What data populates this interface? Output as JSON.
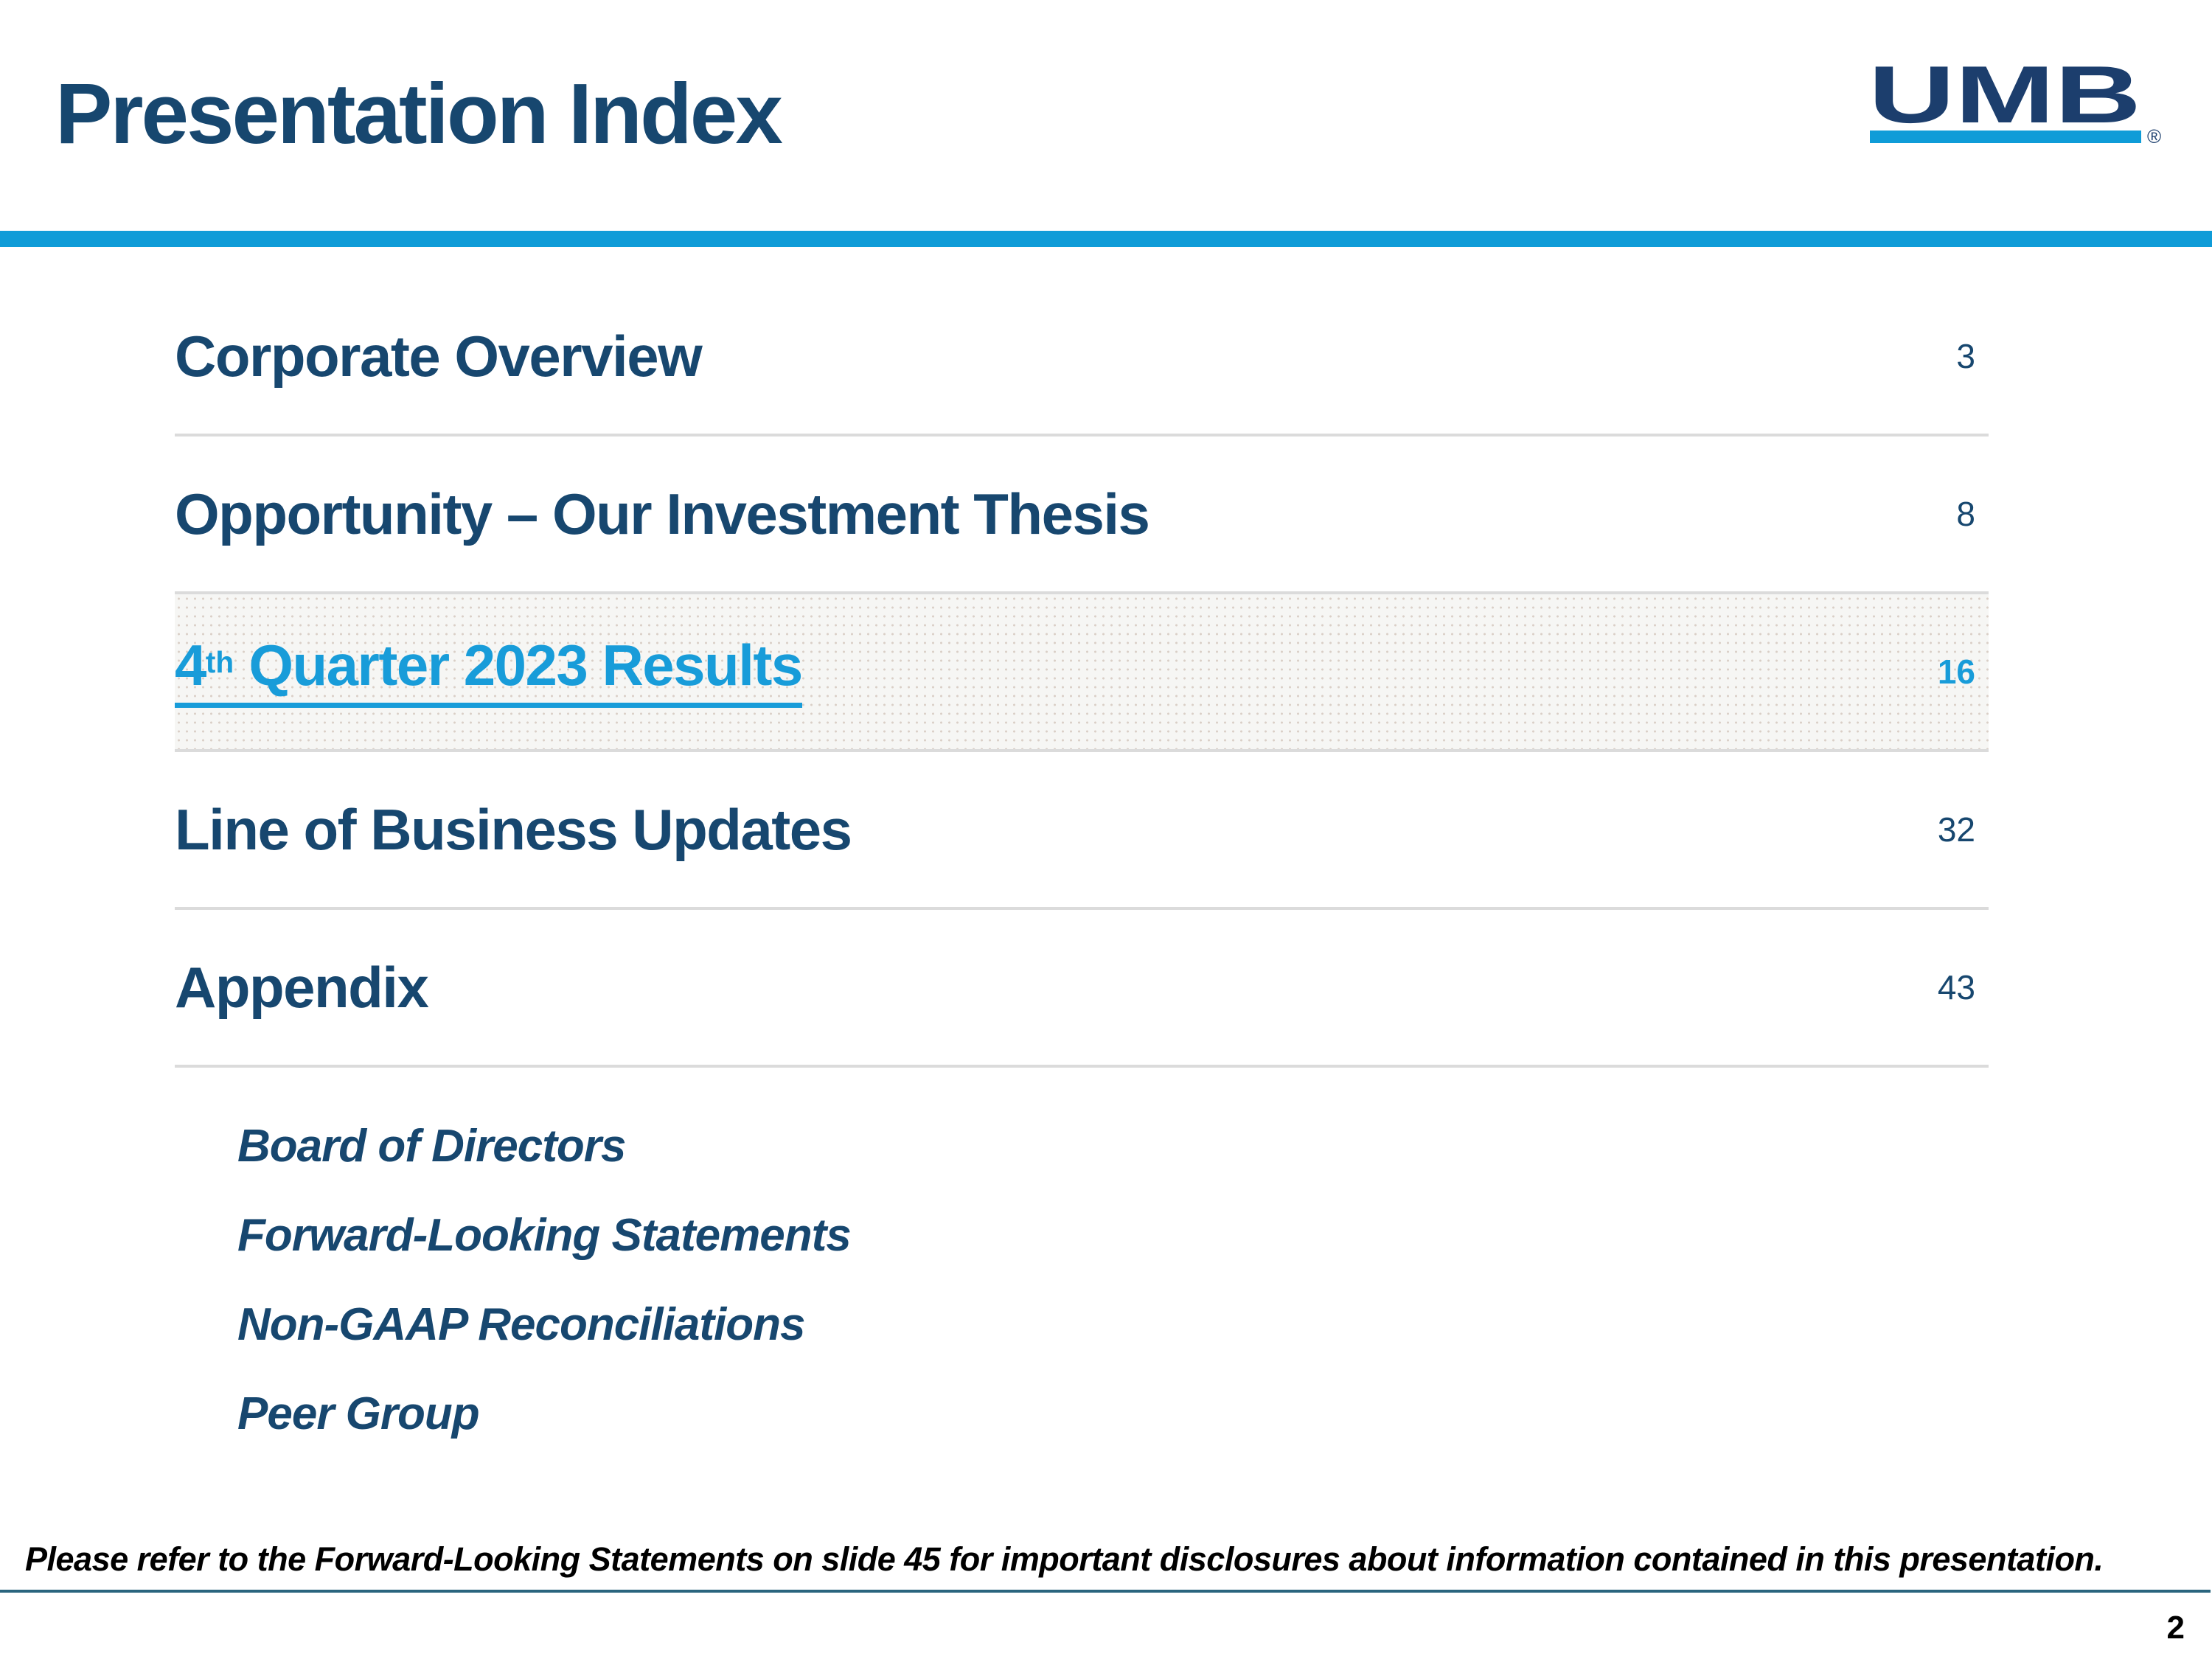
{
  "slide": {
    "title": "Presentation Index",
    "page_number": "2",
    "footnote": "Please refer to the Forward-Looking Statements on slide 45 for important disclosures about information contained in this presentation."
  },
  "logo": {
    "text": "UMB",
    "registered_mark": "®"
  },
  "colors": {
    "navy": "#17476F",
    "logo_navy": "#1C3E6D",
    "link_blue": "#189CD9",
    "accent_bar_blue": "#0F9CD8",
    "divider_gray": "#DBDBDB",
    "footer_rule": "#2A657E"
  },
  "toc": {
    "items": [
      {
        "label": "Corporate Overview",
        "page": "3",
        "highlighted": false
      },
      {
        "label": "Opportunity – Our Investment Thesis",
        "page": "8",
        "highlighted": false
      },
      {
        "label": "4th Quarter 2023 Results",
        "label_parts": {
          "base": "4",
          "sup": "th",
          "rest": " Quarter 2023 Results"
        },
        "page": "16",
        "highlighted": true
      },
      {
        "label": "Line of Business Updates",
        "page": "32",
        "highlighted": false
      },
      {
        "label": "Appendix",
        "page": "43",
        "highlighted": false
      }
    ],
    "sub_items": [
      "Board of Directors",
      "Forward-Looking Statements",
      "Non-GAAP Reconciliations",
      "Peer Group"
    ]
  }
}
